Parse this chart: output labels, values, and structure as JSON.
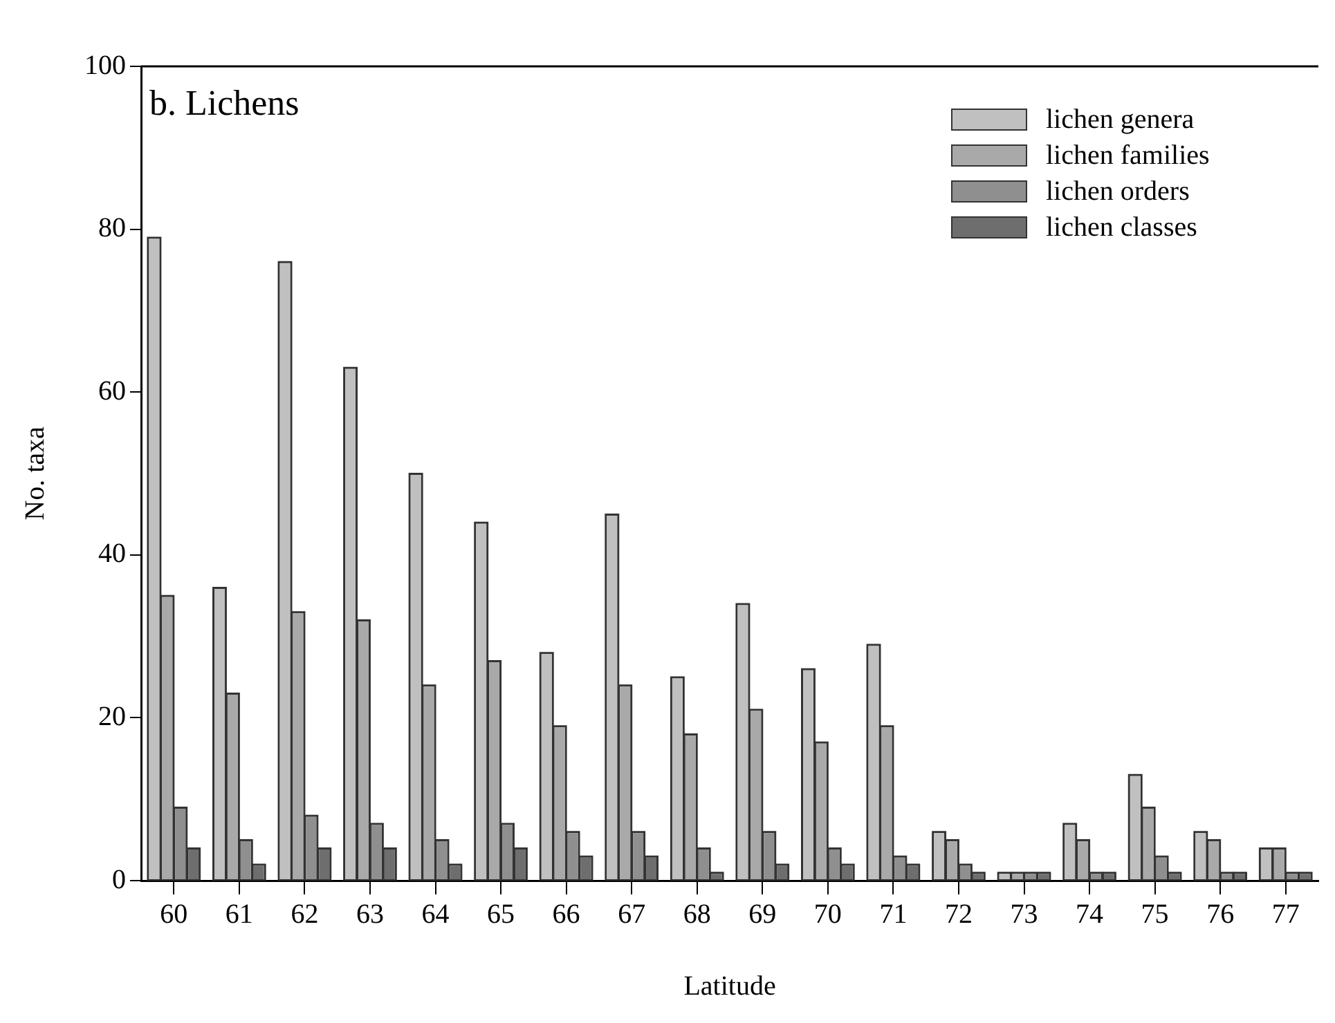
{
  "chart_data": {
    "type": "bar",
    "title": "b. Lichens",
    "xlabel": "Latitude",
    "ylabel": "No. taxa",
    "categories": [
      "60",
      "61",
      "62",
      "63",
      "64",
      "65",
      "66",
      "67",
      "68",
      "69",
      "70",
      "71",
      "72",
      "73",
      "74",
      "75",
      "76",
      "77"
    ],
    "series": [
      {
        "name": "lichen genera",
        "color": "#c0c0c0",
        "values": [
          79,
          36,
          76,
          63,
          50,
          44,
          28,
          45,
          25,
          34,
          26,
          29,
          6,
          1,
          7,
          13,
          6,
          4
        ]
      },
      {
        "name": "lichen families",
        "color": "#a9a9a9",
        "values": [
          35,
          23,
          33,
          32,
          24,
          27,
          19,
          24,
          18,
          21,
          17,
          19,
          5,
          1,
          5,
          9,
          5,
          4
        ]
      },
      {
        "name": "lichen orders",
        "color": "#8f8f8f",
        "values": [
          9,
          5,
          8,
          7,
          5,
          7,
          6,
          6,
          4,
          6,
          4,
          3,
          2,
          1,
          1,
          3,
          1,
          1
        ]
      },
      {
        "name": "lichen classes",
        "color": "#6e6e6e",
        "values": [
          4,
          2,
          4,
          4,
          2,
          4,
          3,
          3,
          1,
          2,
          2,
          2,
          1,
          1,
          1,
          1,
          1,
          1
        ]
      }
    ],
    "ylim": [
      0,
      100
    ],
    "yticks": [
      0,
      20,
      40,
      60,
      80,
      100
    ],
    "grid": false,
    "legend": "top right"
  }
}
